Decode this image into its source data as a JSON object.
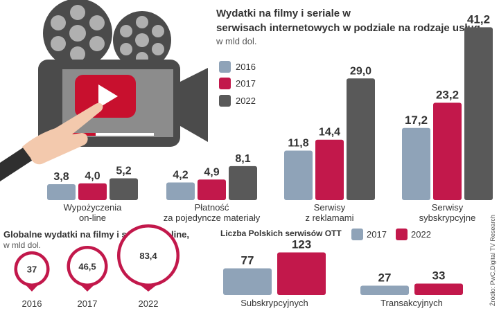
{
  "colors": {
    "y2016": "#8fa3b8",
    "y2017": "#c2184b",
    "y2022": "#595959",
    "illustration_dark": "#4b4b4b",
    "illustration_light": "#b0b0b0",
    "illustration_red": "#c8102e"
  },
  "chart_data": [
    {
      "type": "bar",
      "title": "Wydatki na filmy i seriale w serwisach internetowych w podziale na rodzaje usług",
      "subtitle": "w mld dol.",
      "legend": [
        "2016",
        "2017",
        "2022"
      ],
      "categories": [
        {
          "lines": [
            "Wypożyczenia",
            "on-line"
          ]
        },
        {
          "lines": [
            "Płatność",
            "za pojedyncze materiały"
          ]
        },
        {
          "lines": [
            "Serwisy",
            "z reklamami"
          ]
        },
        {
          "lines": [
            "Serwisy",
            "sybskrypcyjne"
          ]
        }
      ],
      "series": [
        {
          "name": "2016",
          "values": [
            3.8,
            4.2,
            11.8,
            17.2
          ],
          "labels": [
            "3,8",
            "4,2",
            "11,8",
            "17,2"
          ]
        },
        {
          "name": "2017",
          "values": [
            4.0,
            4.9,
            14.4,
            23.2
          ],
          "labels": [
            "4,0",
            "4,9",
            "14,4",
            "23,2"
          ]
        },
        {
          "name": "2022",
          "values": [
            5.2,
            8.1,
            29.0,
            41.2
          ],
          "labels": [
            "5,2",
            "8,1",
            "29,0",
            "41,2"
          ]
        }
      ]
    },
    {
      "type": "bar",
      "title": "Liczba Polskich serwisów OTT",
      "legend": [
        "2017",
        "2022"
      ],
      "categories": [
        "Subskrypcyjnych",
        "Transakcyjnych"
      ],
      "series": [
        {
          "name": "2017",
          "values": [
            77,
            27
          ],
          "labels": [
            "77",
            "27"
          ]
        },
        {
          "name": "2022",
          "values": [
            123,
            33
          ],
          "labels": [
            "123",
            "33"
          ]
        }
      ]
    },
    {
      "type": "scatter",
      "title": "Globalne wydatki na filmy i serwisy on-line,",
      "subtitle": "w mld dol.",
      "x": [
        "2016",
        "2017",
        "2022"
      ],
      "values": [
        37,
        46.5,
        83.4
      ],
      "labels": [
        "37",
        "46,5",
        "83,4"
      ]
    }
  ],
  "source": "Źródło: PwC,Digital TV Research"
}
